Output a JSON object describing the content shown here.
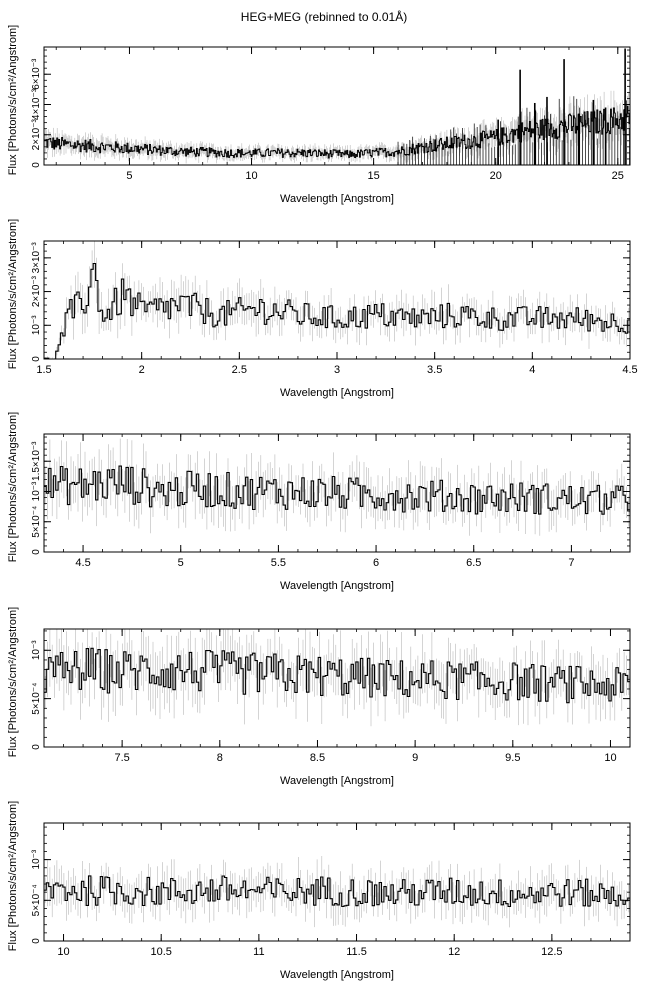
{
  "figure": {
    "title": "HEG+MEG (rebinned to 0.01Å)"
  },
  "chart_data": [
    {
      "type": "line",
      "xlabel": "Wavelength [Angstrom]",
      "ylabel": "Flux [Photons/s/cm²/Angstrom]",
      "xlim": [
        1.5,
        25.5
      ],
      "ylim": [
        0,
        0.0078
      ],
      "x_ticks": [
        5,
        10,
        15,
        20,
        25
      ],
      "y_ticks": [
        {
          "value": 0,
          "label": "0"
        },
        {
          "value": 0.002,
          "label": "2×10⁻³"
        },
        {
          "value": 0.004,
          "label": "4×10⁻³"
        },
        {
          "value": 0.006,
          "label": "6×10⁻³"
        }
      ],
      "series": [
        {
          "x": [
            1.6,
            2.0,
            3.0,
            4.0,
            5.0,
            6.0,
            7.0,
            8.0,
            9.0,
            10.0,
            11.0,
            12.0,
            13.0,
            14.0,
            15.0,
            16.0,
            17.0,
            18.0,
            19.0,
            20.0,
            21.0,
            22.0,
            23.0,
            24.0,
            25.0,
            25.5
          ],
          "values": [
            0.0015,
            0.0014,
            0.0013,
            0.0012,
            0.0011,
            0.001,
            0.0009,
            0.00085,
            0.0008,
            0.00078,
            0.0008,
            0.0008,
            0.00075,
            0.0007,
            0.0008,
            0.0009,
            0.0012,
            0.0014,
            0.0016,
            0.0018,
            0.0022,
            0.0024,
            0.0026,
            0.0028,
            0.003,
            0.0032
          ],
          "peaks": [
            {
              "x": 20.1,
              "y": 0.003
            },
            {
              "x": 21.0,
              "y": 0.0063
            },
            {
              "x": 21.6,
              "y": 0.0041
            },
            {
              "x": 22.1,
              "y": 0.0045
            },
            {
              "x": 22.8,
              "y": 0.007
            },
            {
              "x": 23.4,
              "y": 0.0034
            },
            {
              "x": 24.0,
              "y": 0.0043
            },
            {
              "x": 24.5,
              "y": 0.0038
            },
            {
              "x": 25.3,
              "y": 0.0077
            }
          ]
        }
      ]
    },
    {
      "type": "line",
      "xlabel": "Wavelength [Angstrom]",
      "ylabel": "Flux [Photons/s/cm²/Angstrom]",
      "xlim": [
        1.5,
        4.5
      ],
      "ylim": [
        0,
        0.0035
      ],
      "x_ticks": [
        1.5,
        2,
        2.5,
        3,
        3.5,
        4,
        4.5
      ],
      "y_ticks": [
        {
          "value": 0,
          "label": "0"
        },
        {
          "value": 0.001,
          "label": "10⁻³"
        },
        {
          "value": 0.002,
          "label": "2×10⁻³"
        },
        {
          "value": 0.003,
          "label": "3×10⁻³"
        }
      ],
      "series": [
        {
          "x": [
            1.55,
            1.62,
            1.7,
            1.75,
            1.8,
            1.9,
            2.0,
            2.2,
            2.4,
            2.6,
            2.8,
            3.0,
            3.2,
            3.4,
            3.6,
            3.8,
            4.0,
            4.2,
            4.4,
            4.5
          ],
          "values": [
            0.0,
            0.0013,
            0.0017,
            0.0026,
            0.0012,
            0.0019,
            0.0014,
            0.0016,
            0.0013,
            0.0015,
            0.0013,
            0.0012,
            0.0013,
            0.0012,
            0.0013,
            0.0012,
            0.0012,
            0.0012,
            0.0011,
            0.0011
          ]
        }
      ]
    },
    {
      "type": "line",
      "xlabel": "Wavelength [Angstrom]",
      "ylabel": "Flux [Photons/s/cm²/Angstrom]",
      "xlim": [
        4.3,
        7.3
      ],
      "ylim": [
        0,
        0.00195
      ],
      "x_ticks": [
        4.5,
        5,
        5.5,
        6,
        6.5,
        7
      ],
      "y_ticks": [
        {
          "value": 0,
          "label": "0"
        },
        {
          "value": 0.0005,
          "label": "5×10⁻⁴"
        },
        {
          "value": 0.001,
          "label": "10⁻³"
        },
        {
          "value": 0.0015,
          "label": "1.5×10⁻³"
        }
      ],
      "series": [
        {
          "x": [
            4.3,
            4.5,
            4.7,
            4.9,
            5.1,
            5.3,
            5.5,
            5.7,
            5.9,
            6.1,
            6.3,
            6.5,
            6.7,
            6.9,
            7.1,
            7.3
          ],
          "values": [
            0.0011,
            0.0011,
            0.00115,
            0.001,
            0.00105,
            0.001,
            0.001,
            0.00098,
            0.00095,
            0.00095,
            0.00092,
            0.0009,
            0.0009,
            0.00088,
            0.00085,
            0.00085
          ]
        }
      ]
    },
    {
      "type": "line",
      "xlabel": "Wavelength [Angstrom]",
      "ylabel": "Flux [Photons/s/cm²/Angstrom]",
      "xlim": [
        7.1,
        10.1
      ],
      "ylim": [
        0,
        0.00122
      ],
      "x_ticks": [
        7.5,
        8,
        8.5,
        9,
        9.5,
        10
      ],
      "y_ticks": [
        {
          "value": 0,
          "label": "0"
        },
        {
          "value": 0.0005,
          "label": "5×10⁻⁴"
        },
        {
          "value": 0.001,
          "label": "10⁻³"
        }
      ],
      "series": [
        {
          "x": [
            7.1,
            7.3,
            7.5,
            7.7,
            7.9,
            8.1,
            8.3,
            8.5,
            8.7,
            8.9,
            9.1,
            9.3,
            9.5,
            9.7,
            9.9,
            10.1
          ],
          "values": [
            0.00075,
            0.0008,
            0.00078,
            0.0008,
            0.00078,
            0.00076,
            0.00075,
            0.00074,
            0.00072,
            0.0007,
            0.0007,
            0.00068,
            0.00068,
            0.00065,
            0.00065,
            0.00062
          ]
        }
      ]
    },
    {
      "type": "line",
      "xlabel": "Wavelength [Angstrom]",
      "ylabel": "Flux [Photons/s/cm²/Angstrom]",
      "xlim": [
        9.9,
        12.9
      ],
      "ylim": [
        0,
        0.00145
      ],
      "x_ticks": [
        10,
        10.5,
        11,
        11.5,
        12,
        12.5
      ],
      "y_ticks": [
        {
          "value": 0,
          "label": "0"
        },
        {
          "value": 0.0005,
          "label": "5×10⁻⁴"
        },
        {
          "value": 0.001,
          "label": "10⁻³"
        }
      ],
      "series": [
        {
          "x": [
            9.9,
            10.1,
            10.3,
            10.5,
            10.7,
            10.9,
            11.1,
            11.3,
            11.5,
            11.7,
            11.9,
            12.1,
            12.3,
            12.5,
            12.7,
            12.9
          ],
          "values": [
            0.00065,
            0.00062,
            0.00062,
            0.0006,
            0.00062,
            0.00062,
            0.0006,
            0.00062,
            0.0006,
            0.00058,
            0.0006,
            0.0006,
            0.00058,
            0.0006,
            0.00058,
            0.00055
          ]
        }
      ]
    }
  ]
}
